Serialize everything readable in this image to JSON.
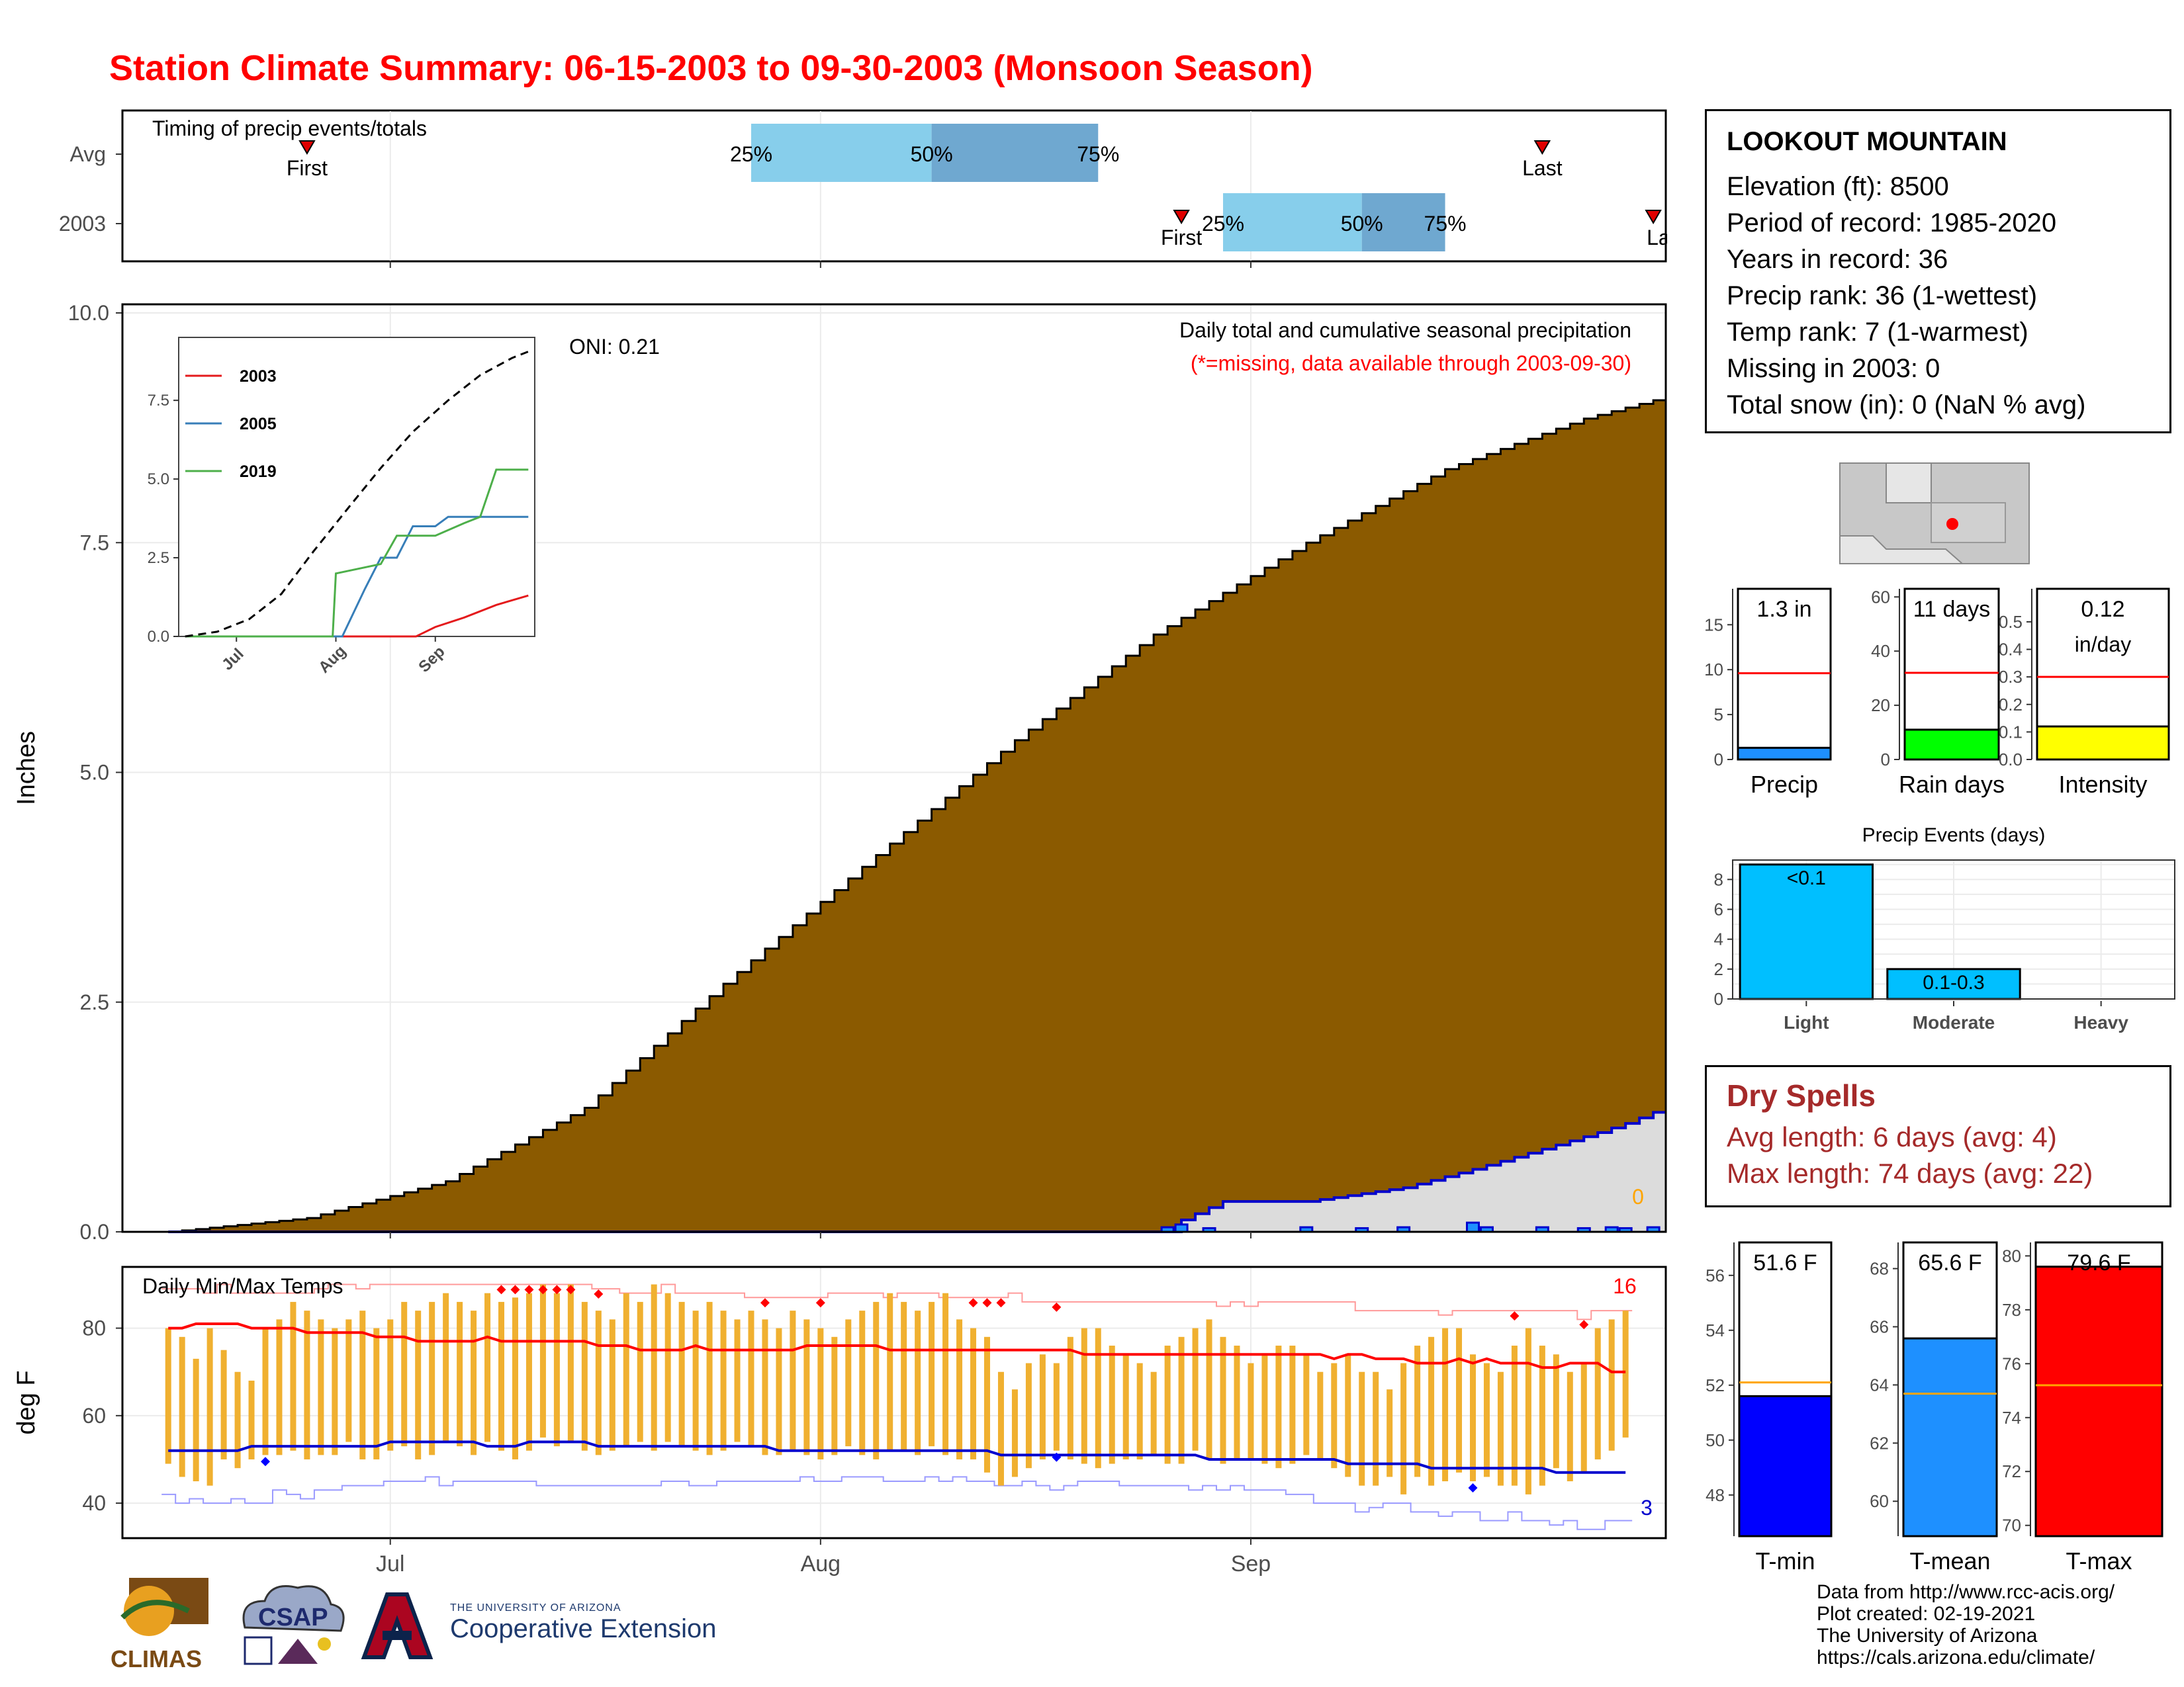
{
  "title": "Station Climate Summary: 06-15-2003 to 09-30-2003 (Monsoon Season)",
  "station": {
    "name": "LOOKOUT MOUNTAIN",
    "rows": [
      "Elevation (ft): 8500",
      "Period of record: 1985-2020",
      "Years in record: 36",
      "Precip rank: 36 (1-wettest)",
      "Temp rank: 7 (1-warmest)",
      "Missing in 2003: 0",
      "Total snow (in): 0 (NaN % avg)"
    ]
  },
  "dry_spells": {
    "title": "Dry Spells",
    "avg": "Avg length: 6 days (avg: 4)",
    "max": "Max length: 74 days (avg: 22)"
  },
  "footer": [
    "Data from http://www.rcc-acis.org/",
    "Plot created: 02-19-2021",
    "The University of Arizona",
    "https://cals.arizona.edu/climate/"
  ],
  "logos": {
    "climas": "CLIMAS",
    "csap": "CSAP",
    "ua_small": "THE UNIVERSITY OF ARIZONA",
    "ua_big": "Cooperative Extension"
  },
  "colors": {
    "title": "#ff0000",
    "cumulative_fill": "#8b5a00",
    "current_fill": "#dcdcdc",
    "current_line": "#0000cd",
    "tmax": "#ff0000",
    "tmin": "#0000cd",
    "bars": "#f0b030",
    "avg_line": "#ff0000",
    "precip_bar": "#1e90ff",
    "raindays_bar": "#00ff00",
    "intensity_bar": "#ffff00",
    "events_bar": "#00bfff",
    "tmin_bar": "#0000ff",
    "tmean_bar": "#1e90ff",
    "tmax_bar": "#ff0000",
    "temp_avg_line": "#ffa500"
  },
  "chart_data": [
    {
      "type": "range-timeline",
      "panel": "timing",
      "title": "Timing of precip events/totals",
      "rows": [
        {
          "label": "Avg",
          "first": "06-25",
          "last": "09-22",
          "p25": "07-27",
          "p50": "08-09",
          "p75": "08-21"
        },
        {
          "label": "2003",
          "first": "08-27",
          "last": "09-30",
          "p25": "08-30",
          "p50": "09-09",
          "p75": "09-15"
        }
      ],
      "marker_labels": {
        "first": "First",
        "last": "Last",
        "p25": "25%",
        "p50": "50%",
        "p75": "75%"
      },
      "last_2003_label": "La"
    },
    {
      "type": "area",
      "panel": "precip",
      "ylabel": "Inches",
      "ylim": [
        0,
        10
      ],
      "yticks": [
        "0.0",
        "2.5",
        "5.0",
        "7.5",
        "10.0"
      ],
      "xticks": [
        "Jul",
        "Aug",
        "Sep"
      ],
      "annotation_title": "Daily total and cumulative seasonal precipitation",
      "annotation_missing": "(*=missing, data available through 2003-09-30)",
      "oni": "ONI: 0.21",
      "missing_count": "0",
      "series": [
        {
          "name": "Avg cumulative",
          "x": [
            "06-15",
            "06-25",
            "07-05",
            "07-15",
            "07-25",
            "08-05",
            "08-15",
            "08-25",
            "09-05",
            "09-15",
            "09-25",
            "09-30"
          ],
          "values": [
            0.0,
            0.15,
            0.55,
            1.35,
            2.7,
            4.1,
            5.35,
            6.5,
            7.5,
            8.3,
            8.85,
            9.05
          ]
        },
        {
          "name": "2003 cumulative",
          "x": [
            "06-15",
            "08-26",
            "08-27",
            "08-30",
            "09-05",
            "09-12",
            "09-17",
            "09-22",
            "09-26",
            "09-28",
            "09-30"
          ],
          "values": [
            0.0,
            0.0,
            0.13,
            0.33,
            0.33,
            0.48,
            0.68,
            0.9,
            1.08,
            1.18,
            1.3
          ]
        },
        {
          "name": "2003 daily",
          "x": [
            "08-26",
            "08-27",
            "08-29",
            "09-05",
            "09-09",
            "09-12",
            "09-17",
            "09-18",
            "09-22",
            "09-25",
            "09-27",
            "09-28",
            "09-30"
          ],
          "values": [
            0.05,
            0.08,
            0.04,
            0.05,
            0.04,
            0.05,
            0.1,
            0.05,
            0.05,
            0.04,
            0.05,
            0.04,
            0.05
          ]
        }
      ]
    },
    {
      "type": "line",
      "panel": "inset",
      "xticks": [
        "Jul",
        "Aug",
        "Sep"
      ],
      "yticks": [
        "0.0",
        "2.5",
        "5.0",
        "7.5"
      ],
      "ylim": [
        0,
        9.5
      ],
      "series": [
        {
          "name": "2003",
          "x": [
            "06-15",
            "08-26",
            "09-01",
            "09-10",
            "09-20",
            "09-30"
          ],
          "values": [
            0,
            0,
            0.3,
            0.6,
            1.0,
            1.3
          ]
        },
        {
          "name": "2005",
          "x": [
            "06-15",
            "08-03",
            "08-10",
            "08-15",
            "08-20",
            "08-25",
            "09-01",
            "09-05",
            "09-30"
          ],
          "values": [
            0,
            0,
            1.5,
            2.5,
            2.5,
            3.5,
            3.5,
            3.8,
            3.8
          ]
        },
        {
          "name": "2019",
          "x": [
            "06-15",
            "07-31",
            "08-01",
            "08-15",
            "08-20",
            "09-01",
            "09-10",
            "09-15",
            "09-20",
            "09-30"
          ],
          "values": [
            0,
            0,
            2.0,
            2.3,
            3.2,
            3.2,
            3.6,
            3.8,
            5.3,
            5.3
          ]
        },
        {
          "name": "avg",
          "x": [
            "06-15",
            "06-25",
            "07-05",
            "07-15",
            "07-25",
            "08-05",
            "08-15",
            "08-25",
            "09-05",
            "09-15",
            "09-25",
            "09-30"
          ],
          "values": [
            0.0,
            0.15,
            0.55,
            1.35,
            2.7,
            4.1,
            5.35,
            6.5,
            7.5,
            8.3,
            8.85,
            9.05
          ]
        }
      ]
    },
    {
      "type": "range-bar",
      "panel": "temps",
      "title": "Daily Min/Max Temps",
      "ylabel": "deg F",
      "ylim": [
        32,
        94
      ],
      "yticks": [
        "40",
        "60",
        "80"
      ],
      "xticks": [
        "Jul",
        "Aug",
        "Sep"
      ],
      "count_high": "16",
      "count_low": "3",
      "days": [
        "06-15",
        "06-16",
        "06-17",
        "06-18",
        "06-19",
        "06-20",
        "06-21",
        "06-22",
        "06-23",
        "06-24",
        "06-25",
        "06-26",
        "06-27",
        "06-28",
        "06-29",
        "06-30",
        "07-01",
        "07-02",
        "07-03",
        "07-04",
        "07-05",
        "07-06",
        "07-07",
        "07-08",
        "07-09",
        "07-10",
        "07-11",
        "07-12",
        "07-13",
        "07-14",
        "07-15",
        "07-16",
        "07-17",
        "07-18",
        "07-19",
        "07-20",
        "07-21",
        "07-22",
        "07-23",
        "07-24",
        "07-25",
        "07-26",
        "07-27",
        "07-28",
        "07-29",
        "07-30",
        "07-31",
        "08-01",
        "08-02",
        "08-03",
        "08-04",
        "08-05",
        "08-06",
        "08-07",
        "08-08",
        "08-09",
        "08-10",
        "08-11",
        "08-12",
        "08-13",
        "08-14",
        "08-15",
        "08-16",
        "08-17",
        "08-18",
        "08-19",
        "08-20",
        "08-21",
        "08-22",
        "08-23",
        "08-24",
        "08-25",
        "08-26",
        "08-27",
        "08-28",
        "08-29",
        "08-30",
        "08-31",
        "09-01",
        "09-02",
        "09-03",
        "09-04",
        "09-05",
        "09-06",
        "09-07",
        "09-08",
        "09-09",
        "09-10",
        "09-11",
        "09-12",
        "09-13",
        "09-14",
        "09-15",
        "09-16",
        "09-17",
        "09-18",
        "09-19",
        "09-20",
        "09-21",
        "09-22",
        "09-23",
        "09-24",
        "09-25",
        "09-26",
        "09-27",
        "09-28",
        "09-29",
        "09-30"
      ],
      "tmax": [
        80,
        78,
        73,
        80,
        75,
        70,
        68,
        80,
        82,
        86,
        84,
        82,
        80,
        82,
        84,
        80,
        82,
        86,
        84,
        86,
        88,
        86,
        84,
        88,
        86,
        87,
        88,
        90,
        88,
        90,
        86,
        84,
        82,
        88,
        86,
        90,
        88,
        86,
        84,
        86,
        84,
        82,
        84,
        82,
        80,
        84,
        82,
        80,
        78,
        82,
        84,
        86,
        88,
        86,
        84,
        86,
        88,
        82,
        80,
        78,
        70,
        66,
        72,
        74,
        72,
        78,
        80,
        80,
        76,
        74,
        72,
        70,
        76,
        78,
        80,
        82,
        78,
        76,
        72,
        74,
        76,
        76,
        74,
        70,
        72,
        74,
        70,
        70,
        66,
        72,
        76,
        78,
        80,
        80,
        74,
        72,
        70,
        76,
        80,
        76,
        74,
        70,
        72,
        80,
        82,
        84
      ],
      "tmin": [
        49,
        46,
        45,
        44,
        50,
        48,
        50,
        51,
        51,
        52,
        50,
        51,
        51,
        54,
        50,
        50,
        52,
        53,
        50,
        51,
        54,
        53,
        51,
        54,
        52,
        50,
        52,
        55,
        53,
        54,
        52,
        51,
        52,
        53,
        54,
        52,
        54,
        53,
        52,
        51,
        52,
        54,
        53,
        51,
        51,
        52,
        51,
        50,
        51,
        53,
        51,
        50,
        52,
        52,
        51,
        53,
        51,
        50,
        50,
        47,
        44,
        46,
        48,
        50,
        52,
        50,
        49,
        48,
        49,
        50,
        50,
        51,
        49,
        49,
        52,
        50,
        49,
        50,
        50,
        49,
        48,
        49,
        51,
        50,
        48,
        46,
        44,
        44,
        46,
        42,
        46,
        44,
        45,
        47,
        45,
        46,
        44,
        44,
        42,
        44,
        48,
        45,
        47,
        50,
        52,
        55
      ],
      "avg_max": [
        80,
        80,
        81,
        81,
        81,
        81,
        80,
        80,
        80,
        80,
        79,
        79,
        79,
        79,
        79,
        78,
        78,
        78,
        77,
        77,
        77,
        77,
        77,
        78,
        77,
        77,
        77,
        77,
        77,
        77,
        77,
        76,
        76,
        76,
        75,
        75,
        75,
        75,
        76,
        75,
        75,
        75,
        75,
        75,
        75,
        75,
        76,
        76,
        76,
        76,
        76,
        76,
        75,
        75,
        75,
        75,
        75,
        75,
        75,
        75,
        75,
        75,
        75,
        75,
        75,
        75,
        74,
        74,
        74,
        74,
        74,
        74,
        74,
        74,
        74,
        74,
        74,
        74,
        74,
        74,
        74,
        74,
        74,
        74,
        73,
        74,
        74,
        73,
        73,
        73,
        72,
        72,
        72,
        73,
        72,
        73,
        72,
        72,
        72,
        71,
        71,
        72,
        72,
        72,
        70,
        70
      ],
      "avg_min": [
        52,
        52,
        52,
        52,
        52,
        52,
        53,
        53,
        53,
        53,
        53,
        53,
        53,
        53,
        53,
        53,
        54,
        54,
        54,
        54,
        54,
        54,
        54,
        53,
        53,
        53,
        54,
        54,
        54,
        54,
        54,
        53,
        53,
        53,
        53,
        53,
        53,
        53,
        53,
        53,
        53,
        53,
        53,
        53,
        52,
        52,
        52,
        52,
        52,
        52,
        52,
        52,
        52,
        52,
        52,
        52,
        52,
        52,
        52,
        52,
        51,
        51,
        51,
        51,
        51,
        51,
        51,
        51,
        51,
        51,
        51,
        51,
        51,
        51,
        51,
        50,
        50,
        50,
        50,
        50,
        50,
        50,
        50,
        50,
        50,
        49,
        49,
        49,
        49,
        49,
        49,
        48,
        48,
        48,
        48,
        48,
        48,
        48,
        48,
        48,
        47,
        47,
        47,
        47,
        47,
        47
      ],
      "record_max": [
        89,
        89,
        89,
        88,
        90,
        88,
        88,
        88,
        88,
        88,
        88,
        89,
        90,
        90,
        89,
        90,
        90,
        90,
        90,
        90,
        90,
        90,
        90,
        90,
        90,
        90,
        90,
        90,
        90,
        90,
        90,
        89,
        89,
        88,
        88,
        88,
        90,
        88,
        88,
        88,
        88,
        88,
        87,
        87,
        87,
        87,
        87,
        87,
        88,
        88,
        88,
        88,
        87,
        88,
        88,
        88,
        87,
        87,
        87,
        87,
        87,
        88,
        86,
        86,
        86,
        86,
        86,
        86,
        86,
        86,
        86,
        86,
        86,
        86,
        86,
        86,
        85,
        86,
        85,
        86,
        86,
        86,
        86,
        86,
        86,
        86,
        84,
        84,
        84,
        84,
        84,
        84,
        83,
        84,
        84,
        84,
        84,
        84,
        84,
        84,
        84,
        84,
        82,
        84,
        84,
        84
      ],
      "record_min": [
        42,
        40,
        41,
        40,
        40,
        41,
        40,
        40,
        43,
        42,
        41,
        43,
        43,
        44,
        44,
        44,
        45,
        45,
        45,
        46,
        44,
        45,
        45,
        45,
        45,
        45,
        45,
        44,
        44,
        44,
        44,
        44,
        44,
        44,
        44,
        44,
        45,
        45,
        44,
        44,
        45,
        45,
        45,
        45,
        45,
        45,
        46,
        45,
        45,
        46,
        46,
        46,
        45,
        45,
        45,
        46,
        45,
        46,
        45,
        45,
        44,
        44,
        45,
        44,
        43,
        44,
        45,
        45,
        45,
        44,
        44,
        44,
        44,
        44,
        43,
        44,
        43,
        44,
        43,
        43,
        43,
        42,
        42,
        40,
        40,
        40,
        38,
        39,
        40,
        40,
        38,
        38,
        37,
        38,
        38,
        36,
        36,
        38,
        36,
        36,
        35,
        36,
        34,
        34,
        36,
        36
      ],
      "record_high_days": [
        "07-09",
        "07-10",
        "07-11",
        "07-12",
        "07-13",
        "07-14",
        "07-16",
        "07-28",
        "08-01",
        "08-12",
        "08-13",
        "08-14",
        "08-18",
        "09-20",
        "09-25",
        "09-29"
      ],
      "record_low_days": [
        "06-22",
        "08-18",
        "09-17"
      ]
    },
    {
      "type": "bar",
      "panel": "precip-summary",
      "title": "Precip",
      "value_label": "1.3 in",
      "values": [
        1.3
      ],
      "average": 9.6,
      "ylim": [
        0,
        19
      ],
      "yticks": [
        "0",
        "5",
        "10",
        "15"
      ]
    },
    {
      "type": "bar",
      "panel": "raindays-summary",
      "title": "Rain days",
      "value_label": "11 days",
      "values": [
        11
      ],
      "average": 32,
      "ylim": [
        0,
        63
      ],
      "yticks": [
        "0",
        "20",
        "40",
        "60"
      ]
    },
    {
      "type": "bar",
      "panel": "intensity-summary",
      "title": "Intensity",
      "value_label": "0.12",
      "value_unit": "in/day",
      "values": [
        0.12
      ],
      "average": 0.3,
      "ylim": [
        0,
        0.62
      ],
      "yticks": [
        "0.0",
        "0.1",
        "0.2",
        "0.3",
        "0.4",
        "0.5"
      ]
    },
    {
      "type": "bar",
      "panel": "events",
      "title": "Precip Events (days)",
      "categories": [
        "Light",
        "Moderate",
        "Heavy"
      ],
      "bar_labels": [
        "<0.1",
        "0.1-0.3",
        ""
      ],
      "values": [
        9,
        2,
        0
      ],
      "ylim": [
        0,
        9.3
      ],
      "yticks": [
        "0",
        "2",
        "4",
        "6",
        "8"
      ]
    },
    {
      "type": "bar",
      "panel": "tmin-summary",
      "title": "T-min",
      "value_label": "51.6 F",
      "values": [
        51.6
      ],
      "average": 52.1,
      "ylim": [
        46.5,
        57.2
      ],
      "yticks": [
        "48",
        "50",
        "52",
        "54",
        "56"
      ]
    },
    {
      "type": "bar",
      "panel": "tmean-summary",
      "title": "T-mean",
      "value_label": "65.6 F",
      "values": [
        65.6
      ],
      "average": 63.7,
      "ylim": [
        58.8,
        68.9
      ],
      "yticks": [
        "60",
        "62",
        "64",
        "66",
        "68"
      ]
    },
    {
      "type": "bar",
      "panel": "tmax-summary",
      "title": "T-max",
      "value_label": "79.6 F",
      "values": [
        79.6
      ],
      "average": 75.2,
      "ylim": [
        69.6,
        80.5
      ],
      "yticks": [
        "70",
        "72",
        "74",
        "76",
        "78",
        "80"
      ]
    }
  ]
}
